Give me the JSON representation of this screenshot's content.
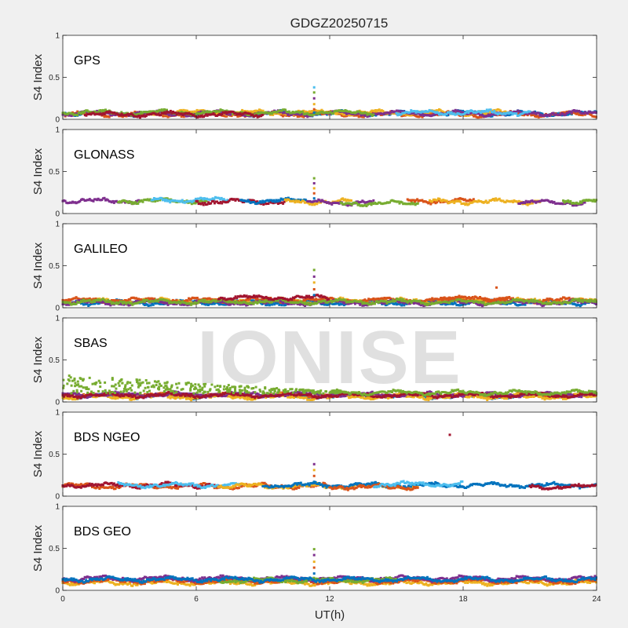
{
  "chart_data": {
    "type": "scatter",
    "title": "GDGZ20250715",
    "xlabel": "UT(h)",
    "ylabel": "S4 Index",
    "xlim": [
      0,
      24
    ],
    "ylim": [
      0,
      1
    ],
    "xticks": [
      "0",
      "6",
      "12",
      "18",
      "24"
    ],
    "yticks": [
      "0",
      "0.5",
      "1"
    ],
    "grid": false,
    "watermark": "IONISE",
    "series_colors": [
      "#0072bd",
      "#d95319",
      "#edb120",
      "#7e2f8e",
      "#77ac30",
      "#4dbeee",
      "#a2142f"
    ],
    "panels": [
      {
        "label": "GPS",
        "typical_s4": 0.07,
        "bands": [
          {
            "color": "#0072bd",
            "x": [
              0,
              24
            ],
            "s4": 0.07
          },
          {
            "color": "#d95319",
            "x": [
              0,
              24
            ],
            "s4": 0.06
          },
          {
            "color": "#edb120",
            "x": [
              4,
              20
            ],
            "s4": 0.08
          },
          {
            "color": "#7e2f8e",
            "x": [
              0,
              24
            ],
            "s4": 0.07
          },
          {
            "color": "#77ac30",
            "x": [
              0,
              14
            ],
            "s4": 0.08
          },
          {
            "color": "#4dbeee",
            "x": [
              15,
              21
            ],
            "s4": 0.08
          },
          {
            "color": "#a2142f",
            "x": [
              1,
              9
            ],
            "s4": 0.06
          }
        ],
        "spike": {
          "x": 11.3,
          "values": [
            0.08,
            0.12,
            0.18,
            0.25,
            0.32,
            0.38
          ]
        }
      },
      {
        "label": "GLONASS",
        "typical_s4": 0.15,
        "bands": [
          {
            "color": "#7e2f8e",
            "x": [
              0,
              3.5
            ],
            "s4": 0.15
          },
          {
            "color": "#77ac30",
            "x": [
              2.5,
              6.5
            ],
            "s4": 0.15
          },
          {
            "color": "#4dbeee",
            "x": [
              4,
              7.5
            ],
            "s4": 0.16
          },
          {
            "color": "#a2142f",
            "x": [
              6,
              10
            ],
            "s4": 0.14
          },
          {
            "color": "#0072bd",
            "x": [
              8,
              11
            ],
            "s4": 0.15
          },
          {
            "color": "#edb120",
            "x": [
              10,
              13
            ],
            "s4": 0.14
          },
          {
            "color": "#7e2f8e",
            "x": [
              11,
              14
            ],
            "s4": 0.13
          },
          {
            "color": "#77ac30",
            "x": [
              12.5,
              16
            ],
            "s4": 0.12
          },
          {
            "color": "#d95319",
            "x": [
              15.5,
              18.5
            ],
            "s4": 0.15
          },
          {
            "color": "#edb120",
            "x": [
              16.5,
              21.5
            ],
            "s4": 0.14
          },
          {
            "color": "#7e2f8e",
            "x": [
              20.5,
              23.5
            ],
            "s4": 0.13
          },
          {
            "color": "#77ac30",
            "x": [
              22.5,
              24
            ],
            "s4": 0.15
          }
        ],
        "spike": {
          "x": 11.3,
          "values": [
            0.18,
            0.24,
            0.3,
            0.36,
            0.42
          ]
        }
      },
      {
        "label": "GALILEO",
        "typical_s4": 0.07,
        "bands": [
          {
            "color": "#0072bd",
            "x": [
              0,
              24
            ],
            "s4": 0.06
          },
          {
            "color": "#edb120",
            "x": [
              0,
              24
            ],
            "s4": 0.08
          },
          {
            "color": "#d95319",
            "x": [
              0,
              24
            ],
            "s4": 0.09
          },
          {
            "color": "#7e2f8e",
            "x": [
              0,
              24
            ],
            "s4": 0.06
          },
          {
            "color": "#77ac30",
            "x": [
              0,
              24
            ],
            "s4": 0.07
          },
          {
            "color": "#a2142f",
            "x": [
              7,
              12
            ],
            "s4": 0.12
          },
          {
            "color": "#d95319",
            "x": [
              17,
              20
            ],
            "s4": 0.11
          }
        ],
        "spike": {
          "x": 11.3,
          "values": [
            0.15,
            0.22,
            0.3,
            0.37,
            0.45
          ]
        },
        "outliers": [
          {
            "x": 19.5,
            "s4": 0.24,
            "color": "#d95319"
          }
        ]
      },
      {
        "label": "SBAS",
        "typical_s4": 0.09,
        "bands": [
          {
            "color": "#0072bd",
            "x": [
              0,
              24
            ],
            "s4": 0.07
          },
          {
            "color": "#d95319",
            "x": [
              0,
              24
            ],
            "s4": 0.08
          },
          {
            "color": "#edb120",
            "x": [
              0,
              24
            ],
            "s4": 0.06
          },
          {
            "color": "#7e2f8e",
            "x": [
              0,
              24
            ],
            "s4": 0.09
          },
          {
            "color": "#a2142f",
            "x": [
              0,
              24
            ],
            "s4": 0.08
          },
          {
            "color": "#77ac30",
            "x": [
              12,
              24
            ],
            "s4": 0.11
          }
        ],
        "scatter_band": {
          "color": "#77ac30",
          "x": [
            0,
            12.5
          ],
          "s4_top": [
            0.32,
            0.12
          ]
        }
      },
      {
        "label": "BDS NGEO",
        "typical_s4": 0.13,
        "bands": [
          {
            "color": "#d95319",
            "x": [
              0,
              12
            ],
            "s4": 0.12
          },
          {
            "color": "#a2142f",
            "x": [
              0,
              7
            ],
            "s4": 0.13
          },
          {
            "color": "#4dbeee",
            "x": [
              2.5,
              8
            ],
            "s4": 0.13
          },
          {
            "color": "#edb120",
            "x": [
              7,
              16
            ],
            "s4": 0.12
          },
          {
            "color": "#0072bd",
            "x": [
              9,
              24
            ],
            "s4": 0.13
          },
          {
            "color": "#d95319",
            "x": [
              12,
              16
            ],
            "s4": 0.11
          },
          {
            "color": "#4dbeee",
            "x": [
              14,
              18
            ],
            "s4": 0.14
          },
          {
            "color": "#a2142f",
            "x": [
              21,
              24
            ],
            "s4": 0.11
          }
        ],
        "spike": {
          "x": 11.3,
          "values": [
            0.17,
            0.24,
            0.31,
            0.38
          ]
        },
        "outliers": [
          {
            "x": 17.4,
            "s4": 0.73,
            "color": "#a2142f"
          }
        ]
      },
      {
        "label": "BDS GEO",
        "typical_s4": 0.12,
        "bands": [
          {
            "color": "#edb120",
            "x": [
              0,
              24
            ],
            "s4": 0.09
          },
          {
            "color": "#d95319",
            "x": [
              0,
              24
            ],
            "s4": 0.11
          },
          {
            "color": "#7e2f8e",
            "x": [
              0,
              24
            ],
            "s4": 0.14
          },
          {
            "color": "#77ac30",
            "x": [
              7,
              15
            ],
            "s4": 0.12
          },
          {
            "color": "#0072bd",
            "x": [
              0,
              24
            ],
            "s4": 0.13
          }
        ],
        "spike": {
          "x": 11.3,
          "values": [
            0.2,
            0.27,
            0.34,
            0.42,
            0.49
          ]
        }
      }
    ]
  }
}
